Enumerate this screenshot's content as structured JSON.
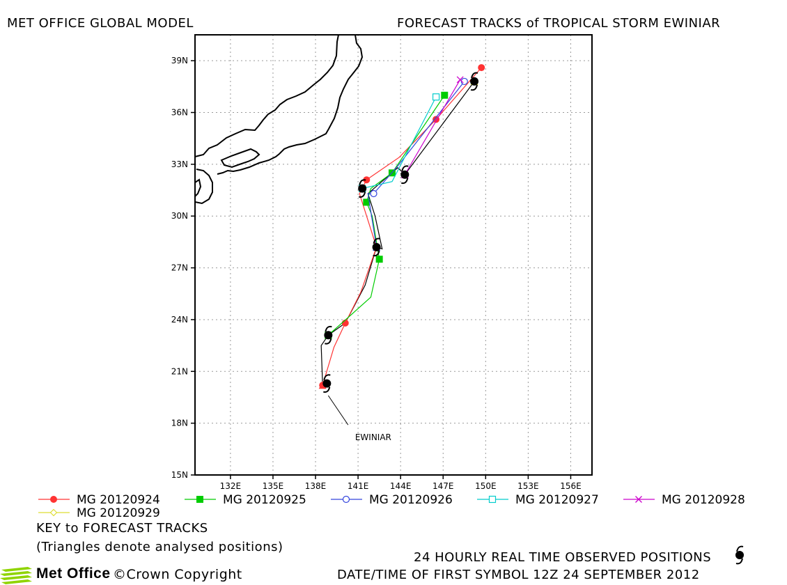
{
  "header": {
    "left_title": "MET OFFICE GLOBAL MODEL",
    "right_title": "FORECAST TRACKS of TROPICAL STORM EWINIAR"
  },
  "footer": {
    "key_title": "KEY to FORECAST TRACKS",
    "key_note": "(Triangles denote analysed positions)",
    "observed_note": "24 HOURLY REAL TIME OBSERVED POSITIONS",
    "first_symbol": "DATE/TIME OF FIRST SYMBOL 12Z 24 SEPTEMBER 2012",
    "logo_name": "Met Office",
    "copyright": "©Crown Copyright"
  },
  "chart_data": {
    "type": "map-track",
    "storm_label": "EWINIAR",
    "xlim": [
      129.5,
      157.5
    ],
    "ylim": [
      15,
      40.5
    ],
    "x_ticks": [
      132,
      135,
      138,
      141,
      144,
      147,
      150,
      153,
      156
    ],
    "x_tick_labels": [
      "132E",
      "135E",
      "138E",
      "141E",
      "144E",
      "147E",
      "150E",
      "153E",
      "156E"
    ],
    "y_ticks": [
      15,
      18,
      21,
      24,
      27,
      30,
      33,
      36,
      39
    ],
    "y_tick_labels": [
      "15N",
      "18N",
      "21N",
      "24N",
      "27N",
      "30N",
      "33N",
      "36N",
      "39N"
    ],
    "grid": true,
    "observed": [
      [
        138.8,
        20.3
      ],
      [
        138.9,
        23.1
      ],
      [
        142.3,
        28.2
      ],
      [
        141.3,
        31.6
      ],
      [
        144.3,
        32.4
      ],
      [
        149.2,
        37.8
      ]
    ],
    "label_point": [
      140.3,
      17.9
    ],
    "series": [
      {
        "name": "MG 20120924",
        "color": "#ff3333",
        "marker": "circle-filled",
        "points": [
          [
            138.5,
            20.2
          ],
          [
            139.3,
            22.4
          ],
          [
            140.1,
            23.8
          ],
          [
            141.2,
            25.6
          ],
          [
            142.3,
            28.2
          ],
          [
            141.1,
            31.3
          ],
          [
            141.6,
            32.1
          ],
          [
            143.9,
            33.4
          ],
          [
            146.5,
            35.6
          ],
          [
            149.7,
            38.6
          ]
        ]
      },
      {
        "name": "MG 20120925",
        "color": "#00cc00",
        "marker": "square-filled",
        "points": [
          [
            138.9,
            23.1
          ],
          [
            141.9,
            25.3
          ],
          [
            142.5,
            27.5
          ],
          [
            142.0,
            30.0
          ],
          [
            141.6,
            30.8
          ],
          [
            141.9,
            31.6
          ],
          [
            143.4,
            32.5
          ],
          [
            147.1,
            37.0
          ]
        ]
      },
      {
        "name": "MG 20120926",
        "color": "#3344dd",
        "marker": "circle-open",
        "points": [
          [
            142.3,
            28.2
          ],
          [
            141.7,
            31.3
          ],
          [
            142.1,
            31.3
          ],
          [
            143.8,
            32.9
          ],
          [
            148.5,
            37.8
          ]
        ]
      },
      {
        "name": "MG 20120927",
        "color": "#00cccc",
        "marker": "square-open",
        "points": [
          [
            141.3,
            31.6
          ],
          [
            143.4,
            32.0
          ],
          [
            146.5,
            36.9
          ]
        ]
      },
      {
        "name": "MG 20120928",
        "color": "#cc00cc",
        "marker": "cross",
        "points": [
          [
            144.3,
            32.4
          ],
          [
            148.2,
            37.9
          ]
        ]
      },
      {
        "name": "MG 20120929",
        "color": "#dddd33",
        "marker": "diamond-open",
        "points": [
          [
            149.2,
            37.8
          ]
        ]
      }
    ],
    "analysed_track": [
      [
        138.5,
        20.2
      ],
      [
        138.4,
        22.5
      ],
      [
        138.9,
        23.1
      ],
      [
        140.1,
        23.8
      ],
      [
        141.5,
        26.0
      ],
      [
        142.3,
        28.2
      ],
      [
        142.7,
        28.1
      ],
      [
        142.2,
        30.0
      ],
      [
        141.7,
        31.3
      ],
      [
        143.8,
        32.8
      ],
      [
        144.3,
        32.4
      ],
      [
        149.2,
        37.8
      ]
    ]
  }
}
